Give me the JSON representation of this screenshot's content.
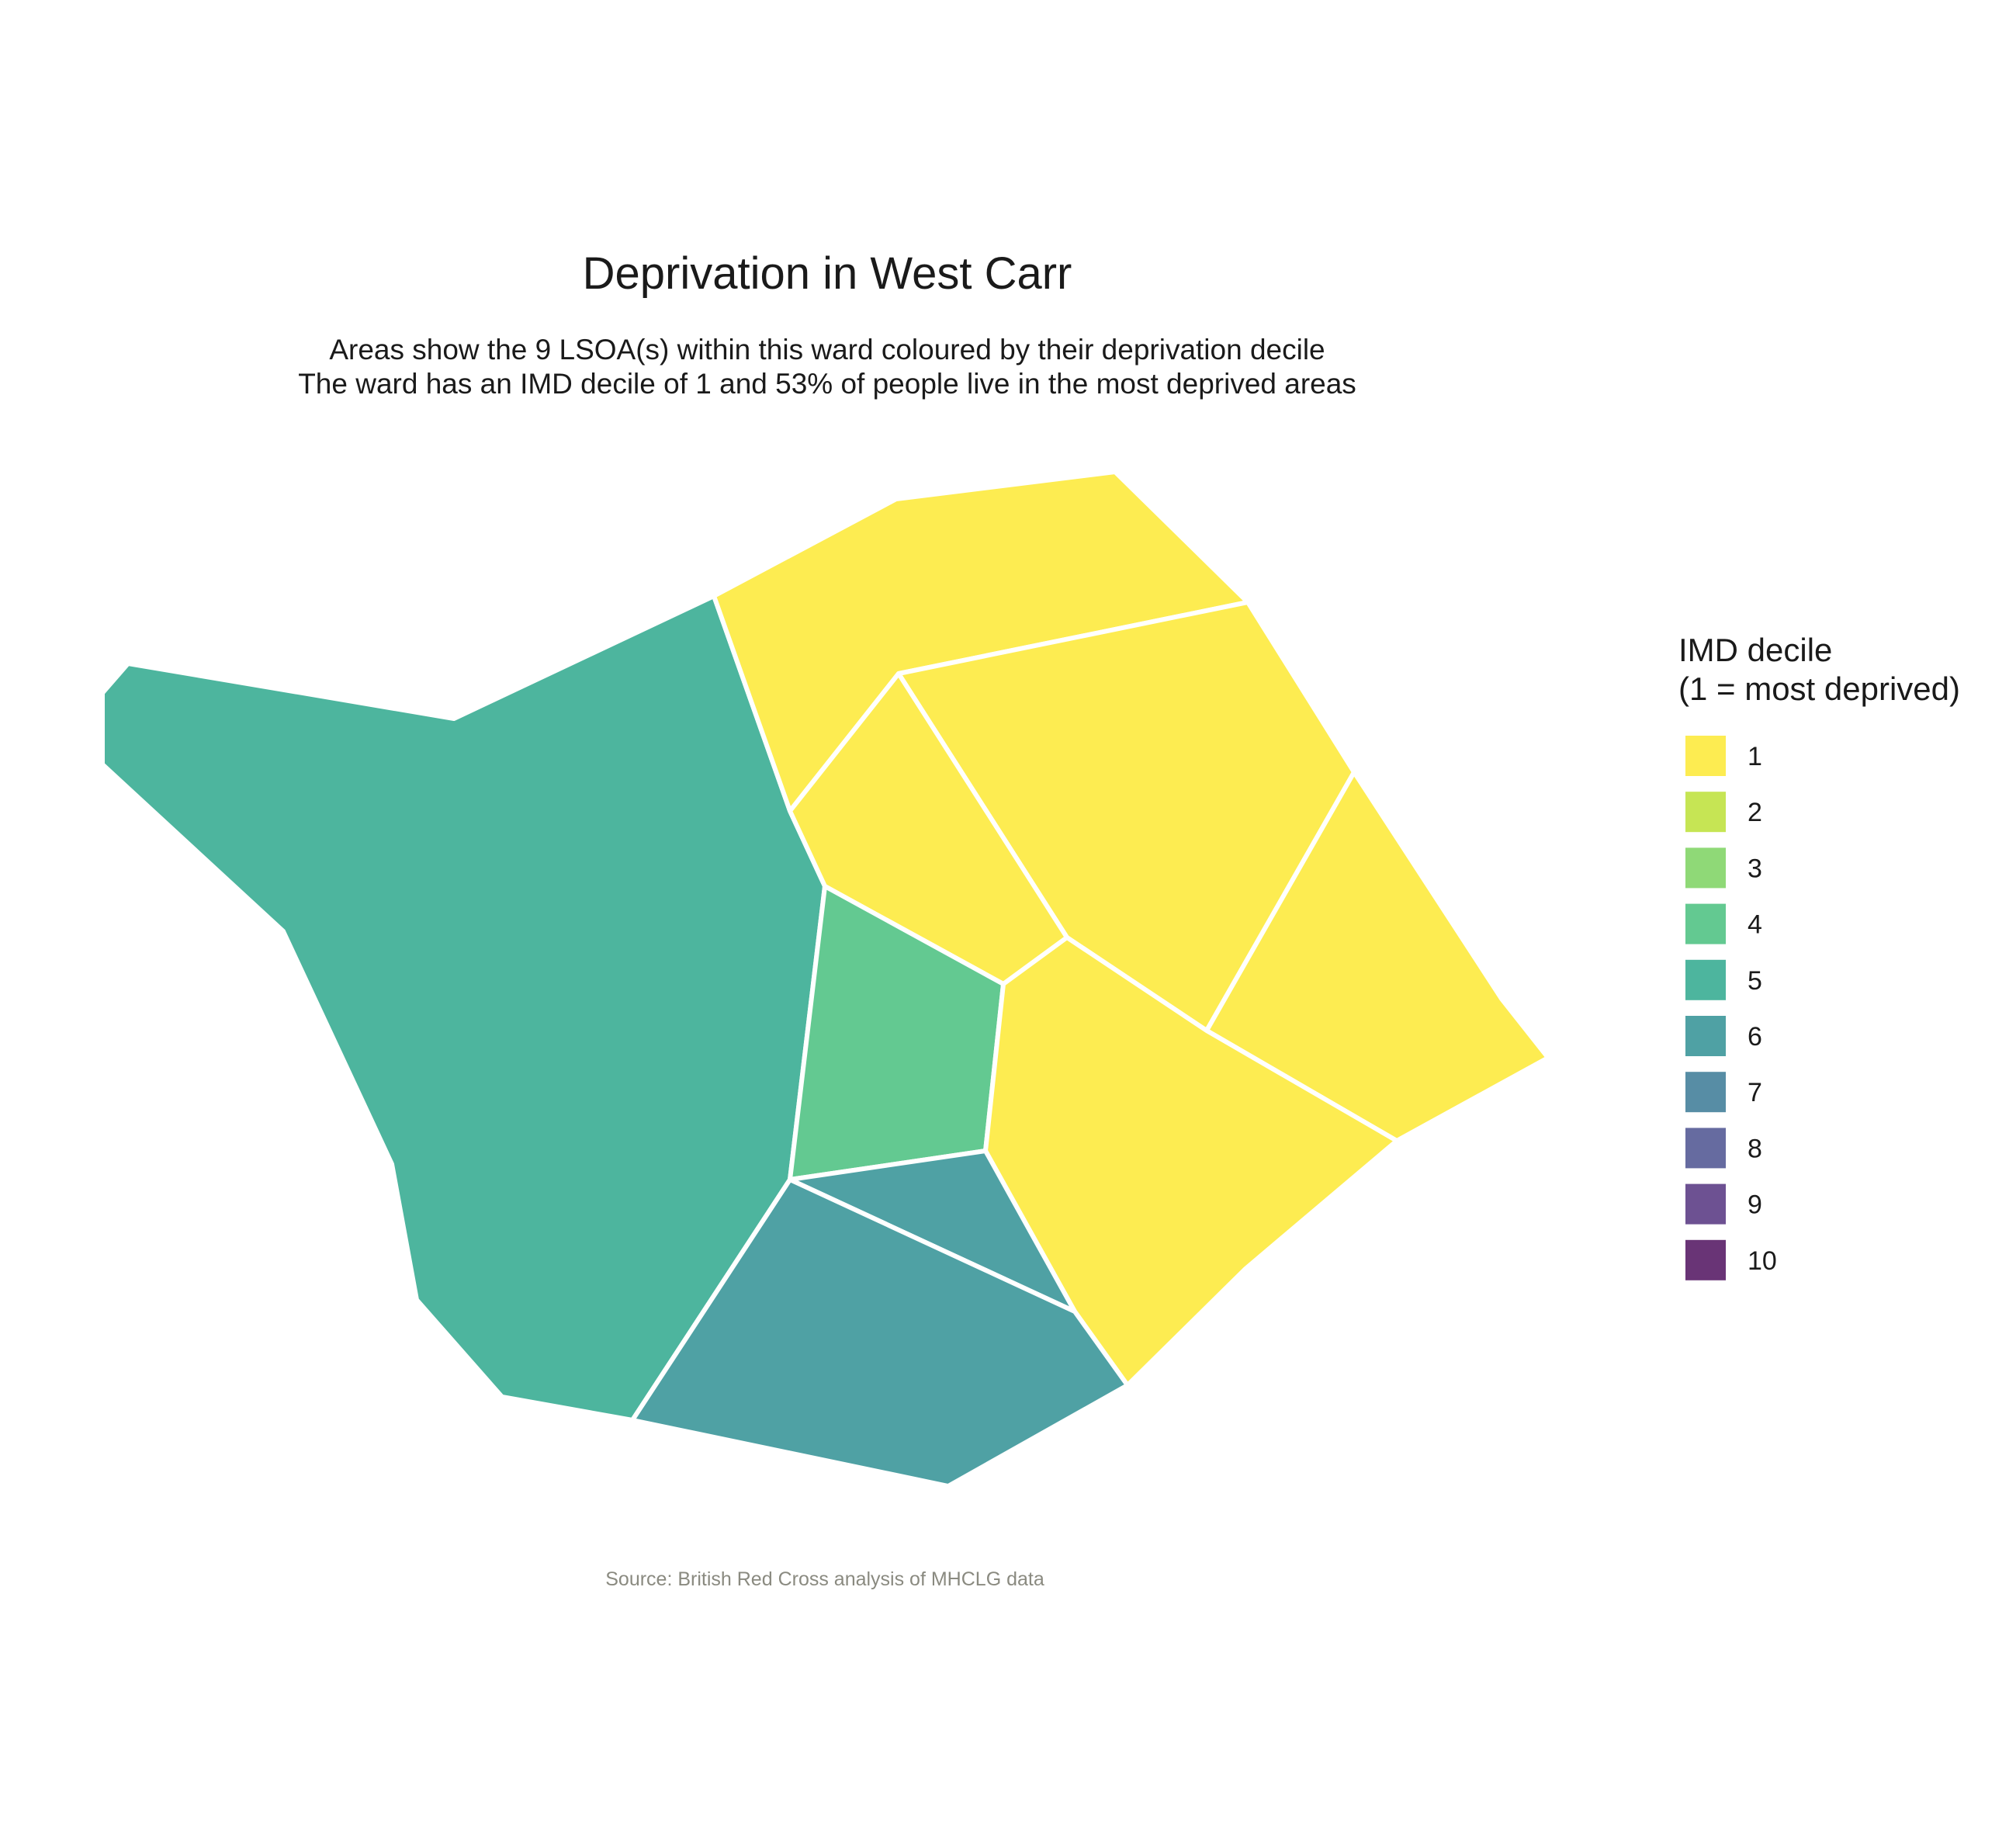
{
  "chart_data": {
    "type": "choropleth",
    "title": "Deprivation in West Carr",
    "subtitle": [
      "Areas show the 9 LSOA(s) within this ward coloured by their deprivation decile",
      "The ward has an IMD decile of 1 and 53% of people live in the most deprived areas"
    ],
    "caption": "Source: British Red Cross analysis of MHCLG data",
    "legend": {
      "title": [
        "IMD decile",
        "(1 = most deprived)"
      ],
      "placement": "right",
      "items": [
        {
          "label": "1",
          "color": "#FDE725"
        },
        {
          "label": "2",
          "color": "#B8DE29"
        },
        {
          "label": "3",
          "color": "#73D055"
        },
        {
          "label": "4",
          "color": "#3CBB75"
        },
        {
          "label": "5",
          "color": "#20A386"
        },
        {
          "label": "6",
          "color": "#238A8D"
        },
        {
          "label": "7",
          "color": "#2D708E"
        },
        {
          "label": "8",
          "color": "#404688"
        },
        {
          "label": "9",
          "color": "#482677"
        },
        {
          "label": "10",
          "color": "#440154"
        }
      ]
    },
    "areas": [
      {
        "id": "lsoa-west",
        "decile": 5
      },
      {
        "id": "lsoa-north",
        "decile": 1
      },
      {
        "id": "lsoa-northeast",
        "decile": 1
      },
      {
        "id": "lsoa-central-north",
        "decile": 1
      },
      {
        "id": "lsoa-east",
        "decile": 1
      },
      {
        "id": "lsoa-central",
        "decile": 4
      },
      {
        "id": "lsoa-southeast",
        "decile": 1
      },
      {
        "id": "lsoa-south-small",
        "decile": 6
      },
      {
        "id": "lsoa-south",
        "decile": 6
      }
    ],
    "fill_opacity": 0.8
  }
}
